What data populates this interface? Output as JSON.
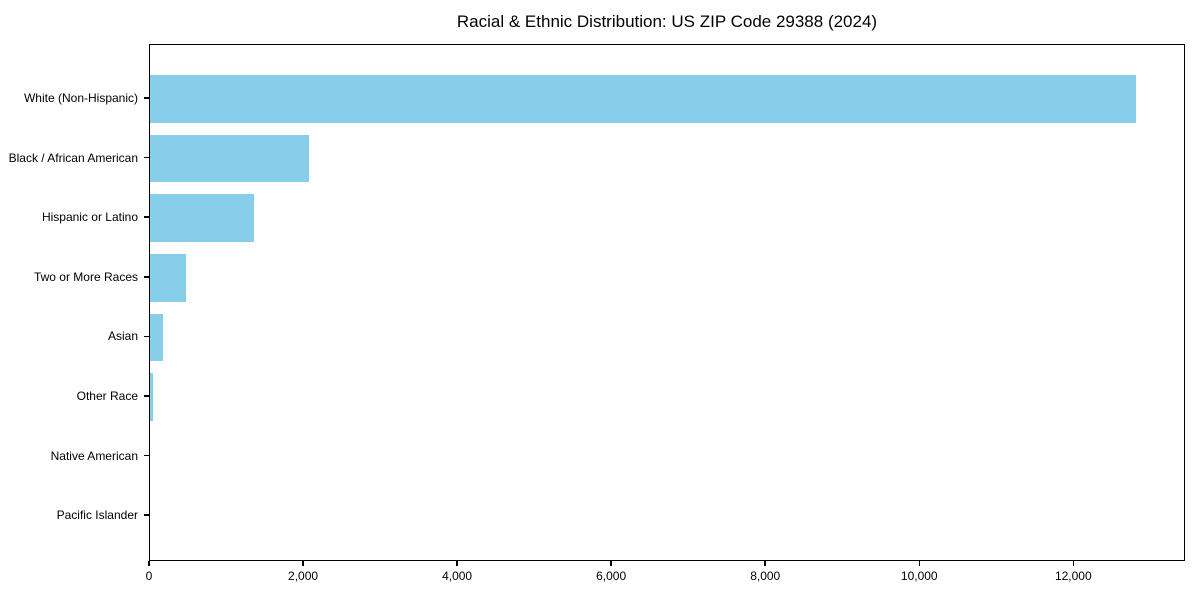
{
  "title": "Racial & Ethnic Distribution: US ZIP Code 29388 (2024)",
  "colors": {
    "bar": "#87CEEB",
    "axis": "#000000",
    "background": "#FFFFFF",
    "text": "#000000"
  },
  "chart_data": {
    "type": "bar",
    "orientation": "horizontal",
    "title": "Racial & Ethnic Distribution: US ZIP Code 29388 (2024)",
    "categories": [
      "White (Non-Hispanic)",
      "Black / African American",
      "Hispanic or Latino",
      "Two or More Races",
      "Asian",
      "Other Race",
      "Native American",
      "Pacific Islander"
    ],
    "values": [
      12800,
      2065,
      1350,
      468,
      170,
      45,
      0,
      0
    ],
    "xlabel": "",
    "ylabel": "",
    "xlim": [
      0,
      13450
    ],
    "x_ticks": [
      {
        "value": 0,
        "label": "0"
      },
      {
        "value": 2000,
        "label": "2,000"
      },
      {
        "value": 4000,
        "label": "4,000"
      },
      {
        "value": 6000,
        "label": "6,000"
      },
      {
        "value": 8000,
        "label": "8,000"
      },
      {
        "value": 10000,
        "label": "10,000"
      },
      {
        "value": 12000,
        "label": "12,000"
      }
    ],
    "bar_color": "#87CEEB",
    "grid": false,
    "legend": null
  }
}
